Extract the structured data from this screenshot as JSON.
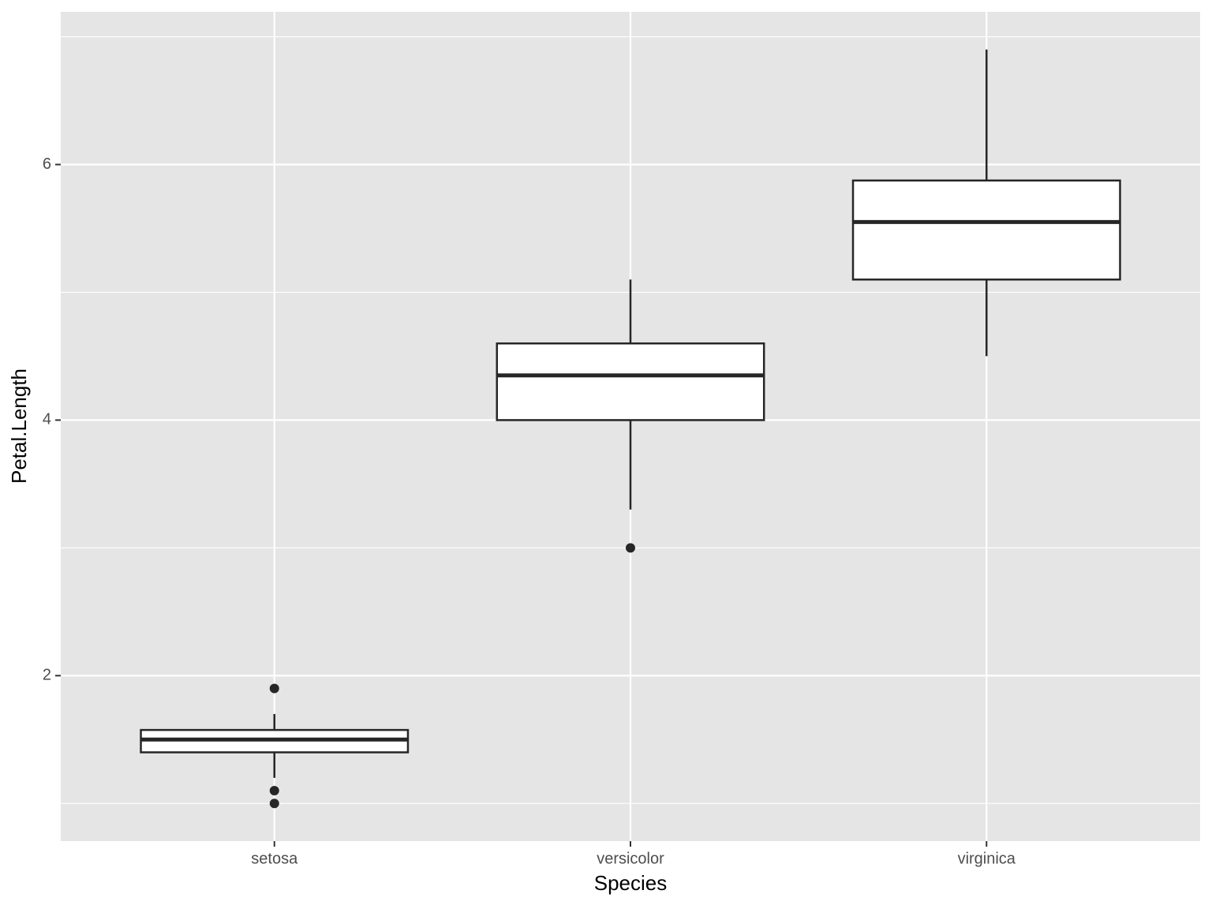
{
  "chart_data": {
    "type": "box",
    "x_label": "Species",
    "y_label": "Petal.Length",
    "categories": [
      "setosa",
      "versicolor",
      "virginica"
    ],
    "boxes": [
      {
        "whisker_low": 1.2,
        "q1": 1.4,
        "median": 1.5,
        "q3": 1.575,
        "whisker_high": 1.7,
        "outliers": [
          1.9,
          1.1,
          1.0
        ]
      },
      {
        "whisker_low": 3.3,
        "q1": 4.0,
        "median": 4.35,
        "q3": 4.6,
        "whisker_high": 5.1,
        "outliers": [
          3.0
        ]
      },
      {
        "whisker_low": 4.5,
        "q1": 5.1,
        "median": 5.55,
        "q3": 5.875,
        "whisker_high": 6.9,
        "outliers": []
      }
    ],
    "ylim": [
      0.705,
      7.195
    ],
    "yticks": [
      2,
      4,
      6
    ],
    "y_minor_grid": [
      1,
      3,
      5,
      7
    ],
    "grid": true,
    "panel_color": "#e5e5e5",
    "box_fill": "#ffffff",
    "line_color": "#262626"
  }
}
